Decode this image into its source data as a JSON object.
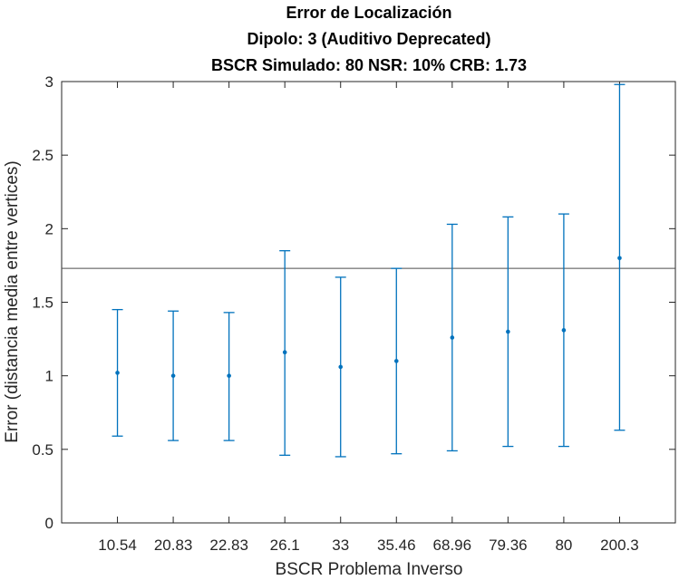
{
  "chart_data": {
    "type": "scatter",
    "title": [
      "Error de Localización",
      "Dipolo: 3 (Auditivo Deprecated)",
      "BSCR Simulado: 80 NSR: 10% CRB: 1.73"
    ],
    "xlabel": "BSCR Problema Inverso",
    "ylabel": "Error (distancia media entre vertices)",
    "categories": [
      "10.54",
      "20.83",
      "22.83",
      "26.1",
      "33",
      "35.46",
      "68.96",
      "79.36",
      "80",
      "200.3"
    ],
    "ylim": [
      0,
      3
    ],
    "yticks": [
      0,
      0.5,
      1,
      1.5,
      2,
      2.5,
      3
    ],
    "ytick_labels": [
      "0",
      "0.5",
      "1",
      "1.5",
      "2",
      "2.5",
      "3"
    ],
    "series": [
      {
        "values": [
          1.02,
          1.0,
          1.0,
          1.16,
          1.06,
          1.1,
          1.26,
          1.3,
          1.31,
          1.8
        ],
        "lower": [
          0.59,
          0.56,
          0.56,
          0.46,
          0.45,
          0.47,
          0.49,
          0.52,
          0.52,
          0.63
        ],
        "upper": [
          1.45,
          1.44,
          1.43,
          1.85,
          1.67,
          1.73,
          2.03,
          2.08,
          2.1,
          2.98
        ],
        "color": "#0072BD"
      }
    ],
    "reference_line": {
      "value": 1.73,
      "color": "#4d4d4d"
    },
    "grid": false,
    "axis_color": "#262626"
  }
}
